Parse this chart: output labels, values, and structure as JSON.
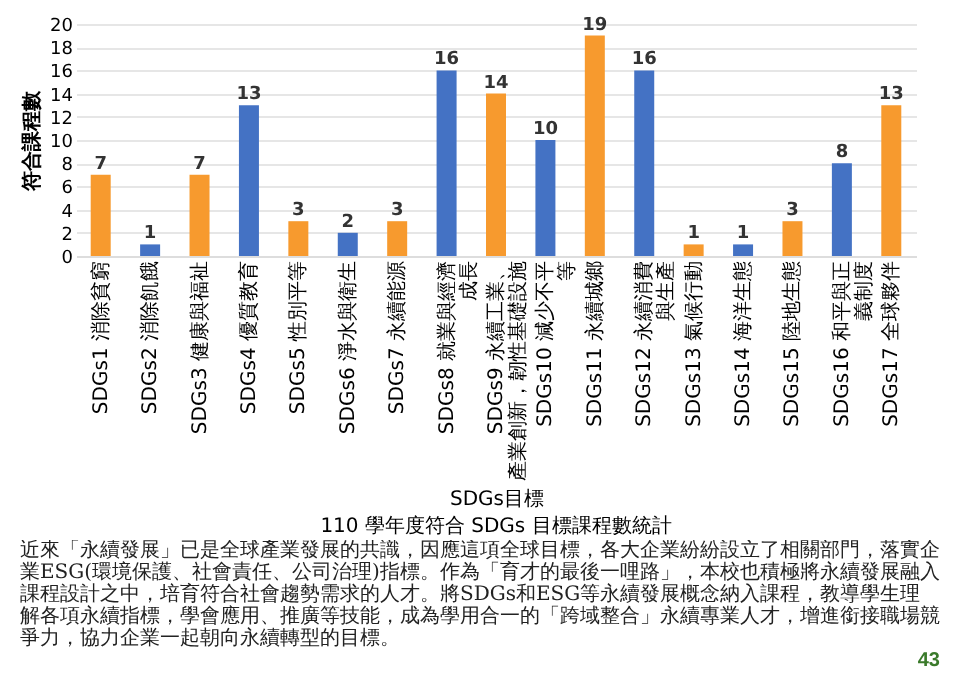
{
  "chart_data": {
    "type": "bar",
    "title": "110 學年度符合 SDGs 目標課程數統計",
    "xlabel": "SDGs目標",
    "ylabel": "符合課程數",
    "categories": [
      "SDGs1 消除貧窮",
      "SDGs2 消除飢餓",
      "SDGs3 健康與福祉",
      "SDGs4 優質教育",
      "SDGs5 性別平等",
      "SDGs6 淨水與衛生",
      "SDGs7 永續能源",
      "SDGs8 就業與經濟成長",
      "SDGs9 永續工業、產業創新，韌性基礎設施",
      "SDGs10 減少不平等",
      "SDGs11 永續城鄉",
      "SDGs12 永續消費與生產",
      "SDGs13 氣候行動",
      "SDGs14 海洋生態",
      "SDGs15 陸地生態",
      "SDGs16 和平與正義制度",
      "SDGs17 全球夥伴"
    ],
    "values": [
      7,
      1,
      7,
      13,
      3,
      2,
      3,
      16,
      14,
      10,
      19,
      16,
      1,
      1,
      3,
      8,
      13
    ],
    "colors": [
      "#f79a2e",
      "#4472c4",
      "#f79a2e",
      "#4472c4",
      "#f79a2e",
      "#4472c4",
      "#f79a2e",
      "#4472c4",
      "#f79a2e",
      "#4472c4",
      "#f79a2e",
      "#4472c4",
      "#f79a2e",
      "#4472c4",
      "#f79a2e",
      "#4472c4",
      "#f79a2e"
    ],
    "ylim": [
      0,
      20
    ],
    "yticks": [
      0,
      2,
      4,
      6,
      8,
      10,
      12,
      14,
      16,
      18,
      20
    ],
    "grid": "y",
    "data_labels": true,
    "annotations": [
      "近來「永續發展」已是全球產業發展的共識，因應這項全球目標，各大企業紛紛設立了相關部門，落實企業ESG(環境保護、社會責任、公司治理)指標。作為「育才的最後一哩路」，本校也積極將永續發展融入課程設計之中，培育符合社會趨勢需求的人才。將SDGs和ESG等永續發展概念納入課程，教導學生理解各項永續指標，學會應用、推廣等技能，成為學用合一的「跨域整合」永續專業人才，增進銜接職場競爭力，協力企業一起朝向永續轉型的目標。",
      "43"
    ]
  }
}
